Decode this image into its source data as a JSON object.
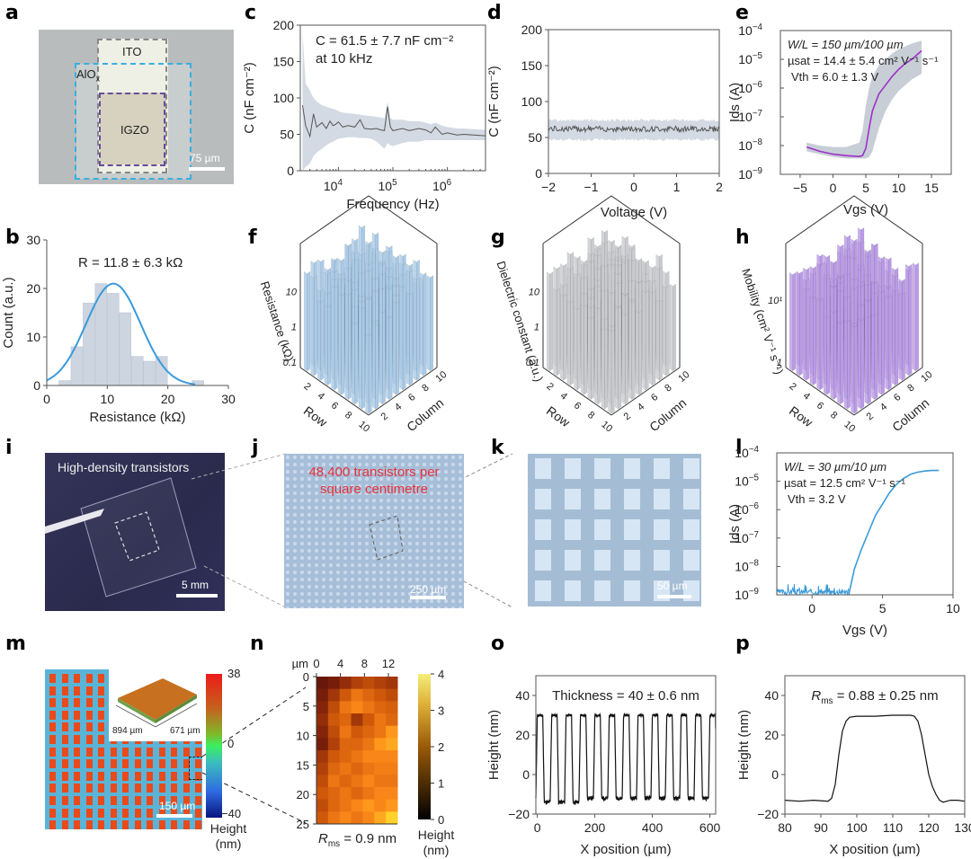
{
  "panel_labels": [
    "a",
    "b",
    "c",
    "d",
    "e",
    "f",
    "g",
    "h",
    "i",
    "j",
    "k",
    "l",
    "m",
    "n",
    "o",
    "p"
  ],
  "panel_a": {
    "labels": {
      "ito": "ITO",
      "alox": "AlO",
      "alox_sub": "x",
      "igzo": "IGZO",
      "scale": "75 µm"
    },
    "colors": {
      "ito_box": "#888888",
      "alox_box": "#3aaee0",
      "igzo_box": "#6a4c9c"
    }
  },
  "panel_i": {
    "caption": "High-density transistors",
    "scale": "5 mm"
  },
  "panel_j": {
    "caption_line1": "48,400 transistors per",
    "caption_line2": "square centimetre",
    "caption_color": "#e8323c",
    "scale": "250 µm"
  },
  "panel_k": {
    "scale": "50 µm"
  },
  "panel_m": {
    "scale": "150 µm",
    "inset_dim1": "894 µm",
    "inset_dim2": "671 µm",
    "colorbar_max": "38",
    "colorbar_mid": "0",
    "colorbar_min": "−40",
    "colorbar_title1": "Height",
    "colorbar_title2": "(nm)"
  },
  "chart_data": [
    {
      "id": "b",
      "type": "bar",
      "title": "",
      "annotation": "R = 11.8 ± 6.3 kΩ",
      "xlabel": "Resistance (kΩ)",
      "ylabel": "Count (a.u.)",
      "xlim": [
        0,
        30
      ],
      "ylim": [
        0,
        30
      ],
      "xticks": [
        0,
        10,
        20,
        30
      ],
      "yticks": [
        0,
        10,
        20,
        30
      ],
      "bin_edges": [
        2,
        4,
        6,
        8,
        10,
        12,
        14,
        16,
        18,
        20,
        22,
        24,
        26
      ],
      "counts": [
        1,
        8,
        17,
        21,
        19,
        15,
        6,
        5,
        6,
        0,
        0,
        1
      ],
      "fit": {
        "type": "gaussian",
        "mean": 11,
        "peak": 21,
        "sigma": 4.5,
        "color": "#3a9ad9"
      },
      "bar_color": "#cdd5e0"
    },
    {
      "id": "c",
      "type": "line",
      "annotation_line1": "C = 61.5 ± 7.7 nF cm⁻²",
      "annotation_line2": "at 10 kHz",
      "xlabel": "Frequency (Hz)",
      "ylabel": "C (nF cm⁻²)",
      "xscale": "log",
      "xlim": [
        2000,
        5000000
      ],
      "ylim": [
        0,
        200
      ],
      "yticks": [
        0,
        50,
        100,
        150,
        200
      ],
      "xticks": [
        "10^4",
        "10^5",
        "10^6"
      ],
      "x": [
        2200,
        2500,
        3000,
        3500,
        4000,
        5000,
        6000,
        7000,
        8000,
        9000,
        10000,
        12000,
        15000,
        20000,
        25000,
        30000,
        40000,
        50000,
        60000,
        70000,
        80000,
        90000,
        100000,
        150000,
        200000,
        300000,
        400000,
        500000,
        600000,
        800000,
        1000000,
        1500000,
        2000000,
        3000000,
        5000000
      ],
      "y": [
        90,
        62,
        47,
        78,
        60,
        66,
        58,
        68,
        62,
        64,
        67,
        60,
        62,
        60,
        70,
        58,
        57,
        58,
        56,
        55,
        88,
        60,
        55,
        58,
        55,
        58,
        56,
        52,
        60,
        50,
        52,
        49,
        50,
        49,
        48
      ],
      "band_upper": [
        190,
        120,
        110,
        100,
        95,
        90,
        88,
        86,
        85,
        84,
        82,
        80,
        79,
        78,
        77,
        76,
        75,
        74,
        73,
        72,
        95,
        72,
        70,
        70,
        68,
        68,
        66,
        64,
        66,
        62,
        60,
        58,
        58,
        57,
        56
      ],
      "band_lower": [
        0,
        5,
        10,
        20,
        25,
        30,
        35,
        38,
        40,
        42,
        44,
        45,
        46,
        46,
        45,
        45,
        44,
        40,
        35,
        30,
        38,
        35,
        34,
        38,
        40,
        40,
        42,
        42,
        42,
        42,
        42,
        42,
        42,
        42,
        42
      ],
      "line_color": "#555555",
      "band_color": "#d3dae3"
    },
    {
      "id": "d",
      "type": "line",
      "xlabel": "Voltage (V)",
      "ylabel": "C (nF cm⁻²)",
      "xlim": [
        -2,
        2
      ],
      "ylim": [
        0,
        200
      ],
      "xticks": [
        -2,
        -1,
        0,
        1,
        2
      ],
      "yticks": [
        0,
        50,
        100,
        150,
        200
      ],
      "mean": 62,
      "band_upper": 76,
      "band_lower": 45,
      "line_color": "#555555",
      "band_color": "#d3dae3"
    },
    {
      "id": "e",
      "type": "line",
      "yscale": "log",
      "annotation_line1": "W/L = 150 µm/100 µm",
      "annotation_line2": "µsat = 14.4 ± 5.4 cm² V⁻¹ s⁻¹",
      "annotation_line3": "Vth = 6.0 ± 1.3 V",
      "xlabel": "Vgs (V)",
      "ylabel": "Ids (A)",
      "xlim": [
        -8,
        18
      ],
      "ylim_exp": [
        -9,
        -4
      ],
      "xticks": [
        -5,
        0,
        5,
        10,
        15
      ],
      "yticks_exp": [
        -9,
        -8,
        -7,
        -6,
        -5,
        -4
      ],
      "x": [
        -4,
        -2,
        0,
        2,
        4,
        4.5,
        5,
        5.5,
        6,
        7,
        8,
        9,
        10,
        11,
        12,
        13.5
      ],
      "y_exp": [
        -8.05,
        -8.2,
        -8.3,
        -8.35,
        -8.38,
        -8.35,
        -8.1,
        -7.4,
        -6.8,
        -6.2,
        -5.9,
        -5.6,
        -5.35,
        -5.15,
        -5.0,
        -4.7
      ],
      "band_upper_exp": [
        -7.9,
        -8.0,
        -8.05,
        -8.05,
        -7.9,
        -7.5,
        -6.6,
        -6.0,
        -5.6,
        -5.2,
        -5.0,
        -4.8,
        -4.65,
        -4.55,
        -4.45,
        -4.35
      ],
      "band_lower_exp": [
        -8.2,
        -8.3,
        -8.4,
        -8.45,
        -8.45,
        -8.45,
        -8.45,
        -8.4,
        -8.2,
        -7.4,
        -6.8,
        -6.4,
        -6.1,
        -5.9,
        -5.7,
        -5.5
      ],
      "line_color": "#9b30c8",
      "band_color": "#c8ced6"
    },
    {
      "id": "f",
      "type": "bar3d",
      "zlabel": "Resistance (kΩ)",
      "xlabel": "Row",
      "ylabel": "Column",
      "zticks": [
        "0.1",
        "1",
        "10"
      ],
      "row_ticks": [
        2,
        4,
        6,
        8,
        10
      ],
      "col_ticks": [
        2,
        4,
        6,
        8,
        10
      ],
      "grid": [
        10,
        10
      ],
      "color": "#aacbe8",
      "value_range_kOhm": [
        5,
        30
      ]
    },
    {
      "id": "g",
      "type": "bar3d",
      "zlabel": "Dielectric constant (a.u.)",
      "xlabel": "Row",
      "ylabel": "Column",
      "zticks": [
        "0.1",
        "1",
        "10"
      ],
      "row_ticks": [
        2,
        4,
        6,
        8,
        10
      ],
      "col_ticks": [
        2,
        4,
        6,
        8,
        10
      ],
      "grid": [
        10,
        10
      ],
      "color": "#c9cbcf",
      "value_range": [
        8,
        12
      ]
    },
    {
      "id": "h",
      "type": "bar3d",
      "zlabel": "Mobility (cm² V⁻¹ s⁻¹)",
      "xlabel": "Row",
      "ylabel": "Column",
      "zticks": [
        "1",
        "10¹"
      ],
      "row_ticks": [
        2,
        4,
        6,
        8,
        10
      ],
      "col_ticks": [
        2,
        4,
        6,
        8,
        10
      ],
      "grid": [
        10,
        10
      ],
      "color": "#bb9be8",
      "value_range": [
        8,
        25
      ]
    },
    {
      "id": "l",
      "type": "line",
      "yscale": "log",
      "annotation_line1": "W/L = 30 µm/10 µm",
      "annotation_line2": "µsat = 12.5 cm² V⁻¹ s⁻¹",
      "annotation_line3": "Vth = 3.2 V",
      "xlabel": "Vgs (V)",
      "ylabel": "Ids (A)",
      "xlim": [
        -2.5,
        10
      ],
      "ylim_exp": [
        -9,
        -4
      ],
      "xticks": [
        0,
        5,
        10
      ],
      "yticks_exp": [
        -9,
        -8,
        -7,
        -6,
        -5,
        -4
      ],
      "x": [
        2.6,
        3,
        3.5,
        4,
        4.5,
        5,
        5.5,
        6,
        6.5,
        7,
        7.5,
        8,
        8.5,
        9
      ],
      "y_exp": [
        -9,
        -8.1,
        -7.4,
        -6.8,
        -6.2,
        -5.8,
        -5.4,
        -5.1,
        -4.9,
        -4.75,
        -4.68,
        -4.64,
        -4.62,
        -4.62
      ],
      "noise_range_exp": [
        -9,
        -8.6
      ],
      "noise_x": [
        -2.5,
        2.6
      ],
      "line_color": "#3a9ad9"
    },
    {
      "id": "n",
      "type": "heatmap",
      "annotation": "Rms = 0.9 nm",
      "x_unit": "µm",
      "xticks": [
        0,
        4,
        8,
        12
      ],
      "yticks": [
        0,
        5,
        10,
        15,
        20,
        25
      ],
      "xlim": [
        0,
        13.5
      ],
      "ylim": [
        0,
        25
      ],
      "colorbar": {
        "min": 0,
        "max": 4,
        "ticks": [
          0,
          1,
          2,
          3,
          4
        ],
        "title1": "Height",
        "title2": "(nm)"
      },
      "rows": 12,
      "cols": 7,
      "values": [
        [
          1.0,
          1.2,
          1.6,
          2.0,
          2.2,
          2.0,
          1.8
        ],
        [
          1.2,
          1.8,
          2.4,
          2.8,
          2.6,
          2.4,
          2.2
        ],
        [
          1.4,
          2.2,
          2.8,
          3.0,
          2.8,
          2.6,
          2.5
        ],
        [
          1.6,
          2.4,
          2.6,
          1.8,
          2.4,
          2.8,
          2.6
        ],
        [
          1.4,
          2.2,
          2.8,
          2.4,
          2.6,
          2.8,
          3.2
        ],
        [
          1.2,
          2.0,
          2.6,
          2.6,
          2.8,
          3.2,
          3.4
        ],
        [
          1.8,
          2.4,
          2.6,
          2.8,
          3.0,
          3.0,
          3.0
        ],
        [
          2.0,
          2.6,
          2.8,
          2.6,
          2.8,
          2.9,
          2.9
        ],
        [
          2.2,
          2.8,
          2.6,
          2.8,
          3.0,
          2.8,
          2.8
        ],
        [
          2.4,
          2.6,
          2.8,
          2.6,
          2.8,
          3.0,
          3.0
        ],
        [
          2.2,
          2.6,
          2.8,
          3.0,
          3.2,
          3.0,
          3.2
        ],
        [
          2.4,
          2.8,
          3.0,
          2.8,
          3.0,
          3.4,
          3.8
        ]
      ]
    },
    {
      "id": "o",
      "type": "line",
      "annotation": "Thickness = 40 ± 0.6 nm",
      "xlabel": "X position (µm)",
      "ylabel": "Height (nm)",
      "xlim": [
        -5,
        620
      ],
      "ylim": [
        -20,
        50
      ],
      "xticks": [
        0,
        200,
        400,
        600
      ],
      "yticks": [
        -20,
        0,
        20,
        40
      ],
      "high": 30,
      "low": -12,
      "period": 50,
      "n_pillars": 13,
      "first_rise": 0,
      "pillar_width": 22,
      "line_color": "#111111"
    },
    {
      "id": "p",
      "type": "line",
      "annotation": "Rms = 0.88 ± 0.25 nm",
      "xlabel": "X position (µm)",
      "ylabel": "Height (nm)",
      "xlim": [
        80,
        130
      ],
      "ylim": [
        -20,
        50
      ],
      "xticks": [
        80,
        90,
        100,
        110,
        120,
        130
      ],
      "yticks": [
        -20,
        0,
        20,
        40
      ],
      "x": [
        80,
        84,
        88,
        92,
        93,
        94,
        95,
        96,
        97,
        98,
        100,
        105,
        110,
        115,
        116,
        117,
        118,
        119,
        120,
        121,
        122,
        123,
        124,
        126,
        128,
        130
      ],
      "y": [
        -13,
        -13.5,
        -13,
        -13.5,
        -12,
        -5,
        10,
        22,
        27,
        29,
        29.5,
        29.5,
        30,
        30,
        29.5,
        27,
        20,
        10,
        0,
        -6,
        -10,
        -13,
        -14,
        -13,
        -13,
        -13.5
      ],
      "line_color": "#111111"
    }
  ]
}
